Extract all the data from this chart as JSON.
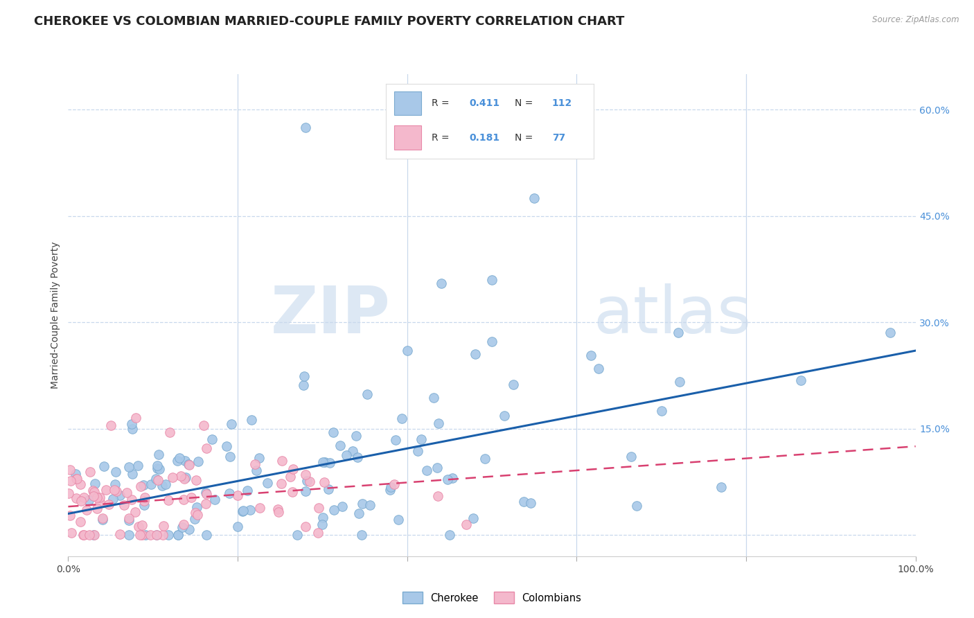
{
  "title": "CHEROKEE VS COLOMBIAN MARRIED-COUPLE FAMILY POVERTY CORRELATION CHART",
  "source": "Source: ZipAtlas.com",
  "ylabel": "Married-Couple Family Poverty",
  "xlim": [
    0,
    1.0
  ],
  "ylim": [
    -0.03,
    0.65
  ],
  "yticks_right": [
    0.0,
    0.15,
    0.3,
    0.45,
    0.6
  ],
  "yticklabels_right": [
    "",
    "15.0%",
    "30.0%",
    "45.0%",
    "60.0%"
  ],
  "cherokee_color": "#a8c8e8",
  "cherokee_edge": "#7aaad0",
  "colombian_color": "#f4b8cc",
  "colombian_edge": "#e888a8",
  "trend_cherokee_color": "#1a5faa",
  "trend_colombian_color": "#d84070",
  "background_color": "#ffffff",
  "grid_color": "#c8d8ec",
  "watermark_zip": "ZIP",
  "watermark_atlas": "atlas",
  "legend_cherokee": "Cherokee",
  "legend_colombian": "Colombians",
  "legend_R1": "0.411",
  "legend_N1": "112",
  "legend_R2": "0.181",
  "legend_N2": "77",
  "right_tick_color": "#4a90d9",
  "title_fontsize": 13,
  "axis_fontsize": 10,
  "tick_fontsize": 10
}
